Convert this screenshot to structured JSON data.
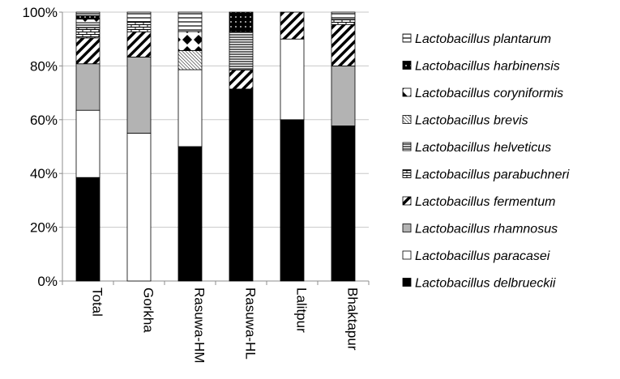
{
  "chart_data": {
    "type": "bar",
    "stacked": true,
    "categories": [
      "Total",
      "Gorkha",
      "Rasuwa-HM",
      "Rasuwa-HL",
      "Lalitpur",
      "Bhaktapur"
    ],
    "ylim": [
      0,
      100
    ],
    "yticks": [
      "0%",
      "20%",
      "40%",
      "60%",
      "80%",
      "100%"
    ],
    "grid": true,
    "legend_position": "right",
    "series": [
      {
        "name": "Lactobacillus delbrueckii",
        "pattern": "solid-black",
        "values": [
          38.5,
          0,
          50,
          71.4,
          60,
          57.7
        ]
      },
      {
        "name": "Lactobacillus paracasei",
        "pattern": "white",
        "values": [
          25,
          55,
          28.6,
          0,
          30,
          0
        ]
      },
      {
        "name": "Lactobacillus rhamnosus",
        "pattern": "gray",
        "values": [
          17.3,
          28.3,
          0,
          0,
          0,
          22.3
        ]
      },
      {
        "name": "Lactobacillus fermentum",
        "pattern": "diagonal-stripes",
        "values": [
          9.6,
          9.4,
          0,
          7.1,
          10,
          15.4
        ]
      },
      {
        "name": "Lactobacillus parabuchneri",
        "pattern": "brick",
        "values": [
          3.8,
          3.8,
          0,
          0,
          0,
          1.9
        ]
      },
      {
        "name": "Lactobacillus helveticus",
        "pattern": "horizontal-lines",
        "values": [
          1.9,
          0,
          0,
          14.3,
          0,
          0
        ]
      },
      {
        "name": "Lactobacillus brevis",
        "pattern": "fine-diagonal",
        "values": [
          0,
          0,
          7.1,
          0,
          0,
          0
        ]
      },
      {
        "name": "Lactobacillus coryniformis",
        "pattern": "diamonds",
        "values": [
          1.3,
          0,
          7.1,
          0,
          0,
          0
        ]
      },
      {
        "name": "Lactobacillus harbinensis",
        "pattern": "dots-on-black",
        "values": [
          1.3,
          0,
          0,
          7.2,
          0,
          0
        ]
      },
      {
        "name": "Lactobacillus plantarum",
        "pattern": "hlines-sparse",
        "values": [
          1.3,
          3.5,
          7.2,
          0,
          0,
          2.7
        ]
      }
    ]
  }
}
